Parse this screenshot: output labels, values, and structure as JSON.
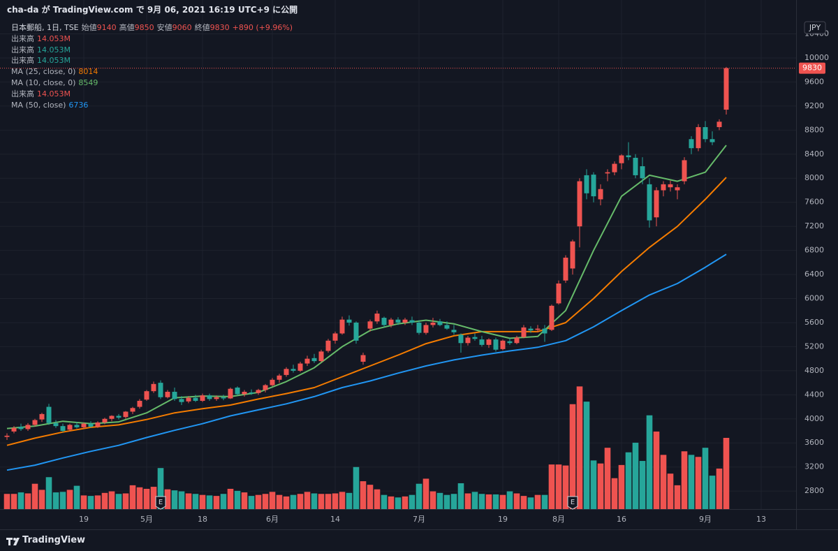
{
  "header": "cha-da が TradingView.com で 9月 06, 2021 16:19 UTC+9 に公開",
  "footer": "TradingView",
  "chart_data": {
    "type": "candlestick",
    "symbol": "日本郵船, 1日, TSE",
    "ohlc_labels": [
      "始値",
      "高値",
      "安値",
      "終値"
    ],
    "change_label": "+890 (+9.96%)",
    "currency": "JPY",
    "up_color": "#ef5350",
    "down_color": "#26a69a",
    "grid": true,
    "xlim": [
      -1,
      113
    ],
    "ylim": [
      2500,
      10615
    ],
    "yticks": [
      2800,
      3200,
      3600,
      4000,
      4400,
      4800,
      5200,
      5600,
      6000,
      6400,
      6800,
      7200,
      7600,
      8000,
      8400,
      8800,
      9200,
      9600,
      10000,
      10400
    ],
    "xticks": [
      {
        "value": 11,
        "label": "19"
      },
      {
        "value": 20,
        "label": "5月"
      },
      {
        "value": 28,
        "label": "18"
      },
      {
        "value": 38,
        "label": "6月"
      },
      {
        "value": 47,
        "label": "14"
      },
      {
        "value": 59,
        "label": "7月"
      },
      {
        "value": 71,
        "label": "19"
      },
      {
        "value": 79,
        "label": "8月"
      },
      {
        "value": 88,
        "label": "16"
      },
      {
        "value": 100,
        "label": "9月"
      },
      {
        "value": 108,
        "label": "13"
      }
    ],
    "open": [
      3700,
      3790,
      3870,
      3830,
      3900,
      3990,
      4200,
      3930,
      3880,
      3820,
      3900,
      3860,
      3920,
      3870,
      3940,
      4000,
      4050,
      4030,
      4120,
      4200,
      4320,
      4460,
      4600,
      4360,
      4450,
      4330,
      4290,
      4350,
      4300,
      4390,
      4330,
      4360,
      4340,
      4520,
      4410,
      4440,
      4430,
      4480,
      4560,
      4650,
      4730,
      4830,
      4800,
      4920,
      5010,
      4960,
      5130,
      5300,
      5420,
      5650,
      5600,
      4950,
      5500,
      5620,
      5680,
      5560,
      5650,
      5600,
      5640,
      5600,
      5430,
      5560,
      5620,
      5560,
      5480,
      5400,
      5260,
      5360,
      5320,
      5230,
      5320,
      5160,
      5290,
      5260,
      5360,
      5500,
      5480,
      5500,
      5480,
      5920,
      6300,
      6500,
      7200,
      8050,
      8060,
      7650,
      8080,
      8100,
      8250,
      8380,
      8340,
      8200,
      7900,
      7350,
      7800,
      7850,
      7800,
      7950,
      8650,
      8500,
      8850,
      8650,
      8850,
      9140
    ],
    "high": [
      3760,
      3880,
      3920,
      3930,
      4000,
      4100,
      4250,
      3980,
      3920,
      3920,
      3950,
      3940,
      3960,
      3960,
      4020,
      4060,
      4080,
      4130,
      4200,
      4330,
      4480,
      4620,
      4640,
      4480,
      4520,
      4380,
      4380,
      4400,
      4420,
      4420,
      4390,
      4400,
      4520,
      4540,
      4480,
      4490,
      4500,
      4580,
      4680,
      4750,
      4860,
      4900,
      4950,
      5050,
      5080,
      5150,
      5330,
      5450,
      5700,
      5720,
      5620,
      5100,
      5650,
      5800,
      5700,
      5680,
      5690,
      5680,
      5700,
      5640,
      5600,
      5680,
      5660,
      5620,
      5560,
      5420,
      5380,
      5420,
      5380,
      5340,
      5350,
      5320,
      5340,
      5380,
      5560,
      5540,
      5560,
      5560,
      5900,
      6300,
      6720,
      6980,
      8000,
      8150,
      8100,
      7900,
      8150,
      8280,
      8400,
      8600,
      8400,
      8350,
      8000,
      7850,
      7950,
      7960,
      7900,
      8350,
      8700,
      8900,
      8950,
      8780,
      8980,
      9850
    ],
    "low": [
      3650,
      3760,
      3800,
      3800,
      3870,
      3950,
      3900,
      3850,
      3780,
      3790,
      3840,
      3830,
      3850,
      3850,
      3910,
      3960,
      3990,
      4000,
      4080,
      4170,
      4300,
      4430,
      4330,
      4340,
      4300,
      4230,
      4260,
      4280,
      4280,
      4300,
      4300,
      4310,
      4330,
      4390,
      4370,
      4400,
      4400,
      4440,
      4540,
      4600,
      4700,
      4770,
      4780,
      4880,
      4930,
      4940,
      5100,
      5250,
      5400,
      5550,
      5250,
      4900,
      5450,
      5580,
      5520,
      5520,
      5560,
      5560,
      5560,
      5400,
      5400,
      5520,
      5540,
      5480,
      5400,
      5100,
      5220,
      5300,
      5200,
      5180,
      5120,
      5140,
      5230,
      5240,
      5340,
      5430,
      5440,
      5280,
      5460,
      5900,
      6260,
      6400,
      6850,
      7650,
      7600,
      7550,
      7950,
      8050,
      8150,
      8300,
      8000,
      7900,
      7180,
      7200,
      7700,
      7780,
      7650,
      7900,
      8400,
      8450,
      8600,
      8550,
      8800,
      9060
    ],
    "close": [
      3720,
      3850,
      3830,
      3900,
      3980,
      4080,
      3930,
      3880,
      3800,
      3900,
      3860,
      3920,
      3870,
      3940,
      4000,
      4050,
      4020,
      4120,
      4180,
      4300,
      4460,
      4580,
      4360,
      4450,
      4330,
      4280,
      4350,
      4300,
      4390,
      4330,
      4360,
      4340,
      4500,
      4410,
      4450,
      4420,
      4480,
      4560,
      4650,
      4720,
      4830,
      4800,
      4920,
      5000,
      4960,
      5120,
      5300,
      5420,
      5650,
      5600,
      5300,
      5060,
      5620,
      5750,
      5560,
      5650,
      5600,
      5650,
      5600,
      5430,
      5560,
      5600,
      5560,
      5500,
      5440,
      5260,
      5350,
      5330,
      5230,
      5320,
      5150,
      5300,
      5260,
      5350,
      5520,
      5470,
      5500,
      5420,
      5880,
      6250,
      6680,
      6950,
      7950,
      7750,
      7700,
      7820,
      8100,
      8240,
      8380,
      8350,
      8050,
      8000,
      7300,
      7800,
      7900,
      7900,
      7850,
      8300,
      8500,
      8850,
      8650,
      8600,
      8940,
      9830
    ],
    "volume": [
      3.0,
      3.0,
      3.3,
      3.1,
      5.0,
      3.8,
      6.3,
      3.3,
      3.4,
      3.8,
      4.6,
      2.7,
      2.6,
      2.7,
      3.2,
      3.5,
      3.0,
      3.1,
      4.7,
      4.3,
      4.0,
      4.4,
      8.1,
      3.9,
      3.7,
      3.5,
      3.1,
      3.0,
      2.8,
      2.7,
      2.6,
      3.0,
      4.0,
      3.6,
      3.3,
      2.6,
      2.8,
      3.0,
      3.4,
      2.8,
      2.5,
      2.8,
      3.0,
      3.4,
      3.1,
      3.0,
      3.0,
      3.1,
      3.4,
      3.2,
      8.3,
      5.5,
      4.8,
      3.9,
      2.8,
      2.5,
      2.3,
      2.5,
      2.8,
      5.0,
      6.0,
      3.5,
      3.2,
      2.8,
      3.0,
      5.1,
      3.1,
      3.4,
      3.0,
      2.9,
      2.9,
      2.8,
      3.5,
      3.1,
      2.6,
      2.3,
      2.8,
      2.8,
      8.8,
      8.8,
      8.6,
      20.7,
      24.2,
      21.2,
      9.6,
      9.0,
      12.1,
      6.1,
      8.7,
      11.2,
      13.1,
      9.5,
      18.5,
      15.3,
      10.7,
      7.0,
      4.7,
      11.4,
      10.7,
      10.3,
      12.1,
      6.6,
      8.0,
      14.053
    ],
    "volume_last_label": "14.053M",
    "volume_lim": [
      0,
      96.3
    ],
    "earnings": [
      {
        "x": 22,
        "label": "E"
      },
      {
        "x": 81,
        "label": "E"
      }
    ],
    "indicators": [
      {
        "name": "出来高",
        "color": "#ef5350"
      },
      {
        "name": "出来高",
        "color": "#26a69a"
      },
      {
        "name": "出来高",
        "color": "#26a69a"
      },
      {
        "name": "MA (25, close, 0)",
        "color": "#f57c00",
        "x": [
          0,
          4,
          8,
          12,
          16,
          20,
          24,
          28,
          32,
          36,
          40,
          44,
          48,
          52,
          56,
          60,
          64,
          68,
          72,
          76,
          80,
          84,
          88,
          92,
          96,
          100,
          103
        ],
        "values": [
          3560,
          3680,
          3780,
          3860,
          3900,
          3990,
          4100,
          4170,
          4230,
          4330,
          4420,
          4520,
          4700,
          4880,
          5060,
          5250,
          5380,
          5450,
          5450,
          5450,
          5600,
          6000,
          6450,
          6850,
          7200,
          7650,
          8014
        ]
      },
      {
        "name": "MA (10, close, 0)",
        "color": "#66bb6a",
        "x": [
          0,
          4,
          8,
          12,
          16,
          20,
          24,
          28,
          32,
          36,
          40,
          44,
          48,
          52,
          56,
          60,
          64,
          68,
          72,
          76,
          80,
          84,
          88,
          92,
          96,
          100,
          103
        ],
        "values": [
          3840,
          3880,
          3960,
          3920,
          3950,
          4100,
          4350,
          4380,
          4370,
          4440,
          4620,
          4850,
          5200,
          5470,
          5580,
          5640,
          5580,
          5450,
          5340,
          5370,
          5800,
          6800,
          7700,
          8050,
          7950,
          8100,
          8549
        ]
      },
      {
        "name": "出来高",
        "color": "#ef5350"
      },
      {
        "name": "MA (50, close)",
        "color": "#2196f3",
        "x": [
          0,
          4,
          8,
          12,
          16,
          20,
          24,
          28,
          32,
          36,
          40,
          44,
          48,
          52,
          56,
          60,
          64,
          68,
          72,
          76,
          80,
          84,
          88,
          92,
          96,
          100,
          103
        ],
        "values": [
          3148,
          3230,
          3350,
          3460,
          3560,
          3690,
          3810,
          3920,
          4050,
          4150,
          4250,
          4370,
          4520,
          4630,
          4760,
          4880,
          4980,
          5060,
          5130,
          5190,
          5300,
          5530,
          5800,
          6060,
          6250,
          6520,
          6736
        ]
      }
    ]
  }
}
